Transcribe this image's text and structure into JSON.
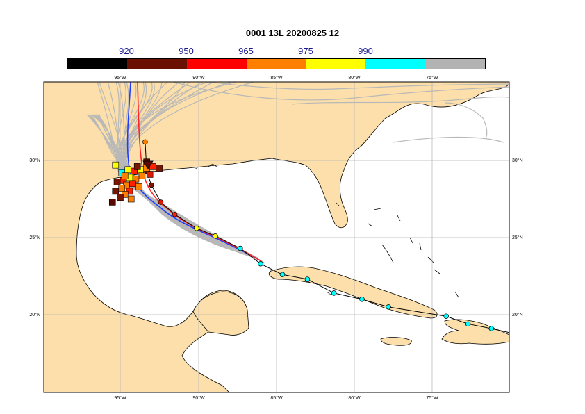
{
  "title": "0001 13L 20200825 12",
  "colorbar": {
    "labels": [
      "920",
      "950",
      "965",
      "975",
      "990"
    ],
    "colors": [
      "#000000",
      "#6b0f00",
      "#ff0000",
      "#ff8000",
      "#ffff00",
      "#00ffff",
      "#b3b3b3"
    ]
  },
  "axes": {
    "lon_ticks": [
      "95°W",
      "90°W",
      "85°W",
      "80°W",
      "75°W"
    ],
    "lat_ticks": [
      "30°N",
      "25°N",
      "20°N"
    ]
  },
  "colors": {
    "land": "#fcdfaa",
    "sea": "#ffffff",
    "grid": "#b0b0b0",
    "ensemble": "#b8b8b8",
    "track_blue": "#1f3cff",
    "track_red": "#ff2020"
  },
  "observed_track": [
    {
      "lon": -69.0,
      "lat": 18.6,
      "color": "#00ffff"
    },
    {
      "lon": -71.2,
      "lat": 19.1,
      "color": "#00ffff"
    },
    {
      "lon": -72.7,
      "lat": 19.4,
      "color": "#00ffff"
    },
    {
      "lon": -74.1,
      "lat": 19.9,
      "color": "#00ffff"
    },
    {
      "lon": -77.8,
      "lat": 20.5,
      "color": "#00ffff"
    },
    {
      "lon": -79.5,
      "lat": 21.0,
      "color": "#00ffff"
    },
    {
      "lon": -81.3,
      "lat": 21.4,
      "color": "#00ffff"
    },
    {
      "lon": -83.0,
      "lat": 22.3,
      "color": "#00ffff"
    },
    {
      "lon": -84.6,
      "lat": 22.6,
      "color": "#00ffff"
    },
    {
      "lon": -86.0,
      "lat": 23.3,
      "color": "#00ffff"
    },
    {
      "lon": -87.3,
      "lat": 24.3,
      "color": "#00ffff"
    },
    {
      "lon": -88.9,
      "lat": 25.1,
      "color": "#ffff00"
    },
    {
      "lon": -90.1,
      "lat": 25.6,
      "color": "#ffff00"
    },
    {
      "lon": -91.5,
      "lat": 26.5,
      "color": "#ff2000"
    },
    {
      "lon": -92.4,
      "lat": 27.3,
      "color": "#dd1a00"
    },
    {
      "lon": -93.0,
      "lat": 28.4,
      "color": "#7a1500"
    },
    {
      "lon": -93.3,
      "lat": 29.3,
      "color": "#7a1500"
    },
    {
      "lon": -93.4,
      "lat": 31.2,
      "color": "#ff8000"
    }
  ],
  "ensemble_positions": [
    {
      "lon": -95.3,
      "lat": 29.7,
      "color": "#ffff00"
    },
    {
      "lon": -94.9,
      "lat": 29.2,
      "color": "#00ffff"
    },
    {
      "lon": -94.5,
      "lat": 29.4,
      "color": "#ffff00"
    },
    {
      "lon": -94.1,
      "lat": 29.3,
      "color": "#ff2000"
    },
    {
      "lon": -93.7,
      "lat": 29.4,
      "color": "#ffff00"
    },
    {
      "lon": -93.3,
      "lat": 29.5,
      "color": "#ff8000"
    },
    {
      "lon": -92.9,
      "lat": 29.6,
      "color": "#ff2000"
    },
    {
      "lon": -92.5,
      "lat": 29.5,
      "color": "#7a1500"
    },
    {
      "lon": -93.1,
      "lat": 29.1,
      "color": "#dd1a00"
    },
    {
      "lon": -93.6,
      "lat": 29.0,
      "color": "#ff8000"
    },
    {
      "lon": -94.0,
      "lat": 28.8,
      "color": "#ff8000"
    },
    {
      "lon": -94.4,
      "lat": 28.9,
      "color": "#ffff00"
    },
    {
      "lon": -94.8,
      "lat": 28.7,
      "color": "#ff2000"
    },
    {
      "lon": -95.2,
      "lat": 28.6,
      "color": "#7a1500"
    },
    {
      "lon": -94.6,
      "lat": 28.4,
      "color": "#ff8000"
    },
    {
      "lon": -94.2,
      "lat": 28.5,
      "color": "#ff2000"
    },
    {
      "lon": -93.8,
      "lat": 28.3,
      "color": "#ff8000"
    },
    {
      "lon": -94.9,
      "lat": 28.2,
      "color": "#ff8000"
    },
    {
      "lon": -95.3,
      "lat": 28.0,
      "color": "#7a1500"
    },
    {
      "lon": -94.4,
      "lat": 28.0,
      "color": "#ff2000"
    },
    {
      "lon": -94.7,
      "lat": 27.8,
      "color": "#ff8000"
    },
    {
      "lon": -95.0,
      "lat": 27.6,
      "color": "#7a1500"
    },
    {
      "lon": -94.3,
      "lat": 27.5,
      "color": "#ff8000"
    },
    {
      "lon": -95.5,
      "lat": 27.3,
      "color": "#5a0a00"
    },
    {
      "lon": -94.7,
      "lat": 29.0,
      "color": "#ff8000"
    },
    {
      "lon": -93.9,
      "lat": 29.6,
      "color": "#7a1500"
    },
    {
      "lon": -93.3,
      "lat": 29.9,
      "color": "#5a0a00"
    }
  ]
}
